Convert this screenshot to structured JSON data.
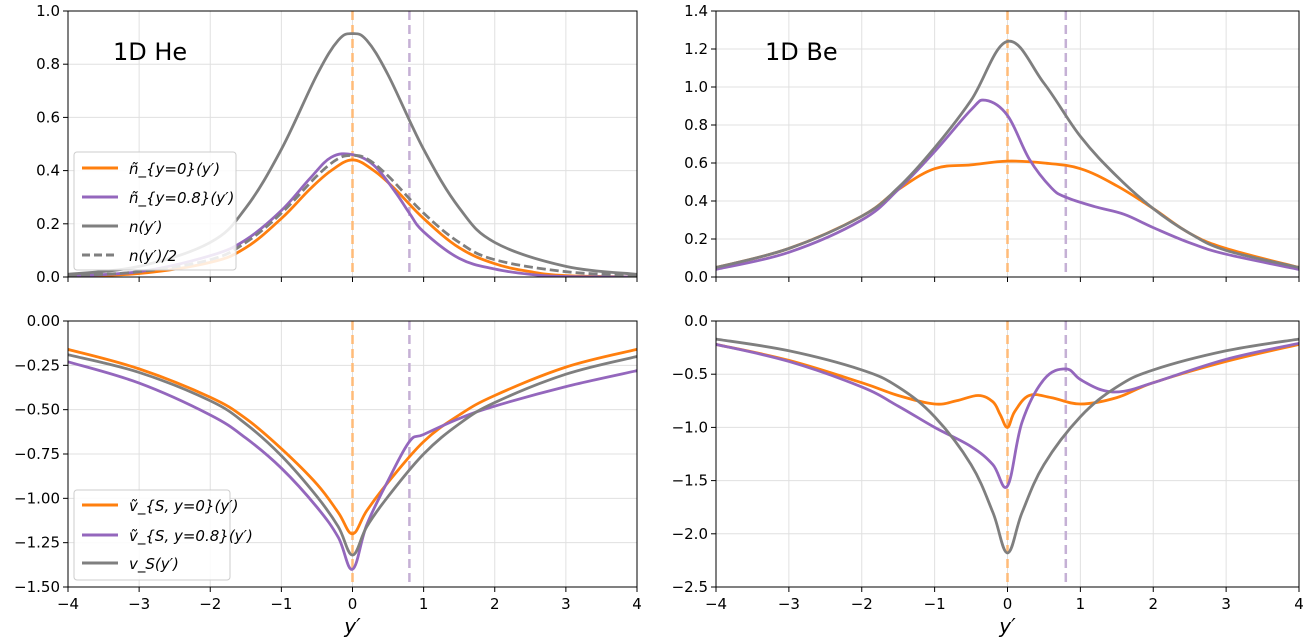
{
  "colors": {
    "orange": "#ff7f0e",
    "purple": "#9467bd",
    "gray": "#7f7f7f",
    "vline_orange": "#ffbb78",
    "vline_purple": "#c5b0d5"
  },
  "chart_data": [
    {
      "id": "he_density",
      "type": "line",
      "annotation": "1D He",
      "xlim": [
        -4,
        4
      ],
      "ylim": [
        0,
        1.0
      ],
      "xticks": [
        -4,
        -3,
        -2,
        -1,
        0,
        1,
        2,
        3,
        4
      ],
      "yticks": [
        0.0,
        0.2,
        0.4,
        0.6,
        0.8,
        1.0
      ],
      "yticklabels": [
        "0.0",
        "0.2",
        "0.4",
        "0.6",
        "0.8",
        "1.0"
      ],
      "show_xticklabels": false,
      "vlines": [
        {
          "x": 0,
          "color": "vline_orange"
        },
        {
          "x": 0.8,
          "color": "vline_purple"
        }
      ],
      "legend": "center-left",
      "series": [
        {
          "name": "ñ_{y=0}(y′)",
          "color": "orange",
          "dash": false,
          "x": [
            -4,
            -3,
            -2,
            -1.5,
            -1,
            -0.6,
            -0.3,
            0,
            0.3,
            0.6,
            1,
            1.5,
            2,
            2.5,
            3,
            4
          ],
          "y": [
            0.003,
            0.013,
            0.055,
            0.11,
            0.22,
            0.33,
            0.4,
            0.44,
            0.4,
            0.33,
            0.22,
            0.11,
            0.05,
            0.02,
            0.005,
            0.0
          ]
        },
        {
          "name": "ñ_{y=0.8}(y′)",
          "color": "purple",
          "dash": false,
          "x": [
            -4,
            -3,
            -2,
            -1.5,
            -1,
            -0.6,
            -0.3,
            0,
            0.3,
            0.6,
            0.8,
            1.0,
            1.5,
            2,
            2.5,
            3,
            4
          ],
          "y": [
            0.004,
            0.02,
            0.08,
            0.14,
            0.25,
            0.37,
            0.45,
            0.46,
            0.42,
            0.32,
            0.24,
            0.17,
            0.07,
            0.03,
            0.01,
            0.002,
            0.0
          ]
        },
        {
          "name": "n(y′)",
          "color": "gray",
          "dash": false,
          "x": [
            -4,
            -3,
            -2,
            -1.5,
            -1,
            -0.5,
            -0.2,
            0,
            0.2,
            0.5,
            1,
            1.5,
            2,
            3,
            4
          ],
          "y": [
            0.01,
            0.04,
            0.13,
            0.26,
            0.48,
            0.76,
            0.89,
            0.915,
            0.89,
            0.76,
            0.48,
            0.26,
            0.13,
            0.04,
            0.01
          ]
        },
        {
          "name": "n(y′)/2",
          "color": "gray",
          "dash": true,
          "x": [
            -4,
            -3,
            -2,
            -1.5,
            -1,
            -0.5,
            -0.2,
            0,
            0.2,
            0.5,
            1,
            1.5,
            2,
            3,
            4
          ],
          "y": [
            0.005,
            0.02,
            0.065,
            0.13,
            0.24,
            0.38,
            0.445,
            0.457,
            0.445,
            0.38,
            0.24,
            0.13,
            0.065,
            0.02,
            0.005
          ]
        }
      ]
    },
    {
      "id": "be_density",
      "type": "line",
      "annotation": "1D Be",
      "xlim": [
        -4,
        4
      ],
      "ylim": [
        0,
        1.4
      ],
      "xticks": [
        -4,
        -3,
        -2,
        -1,
        0,
        1,
        2,
        3,
        4
      ],
      "yticks": [
        0.0,
        0.2,
        0.4,
        0.6,
        0.8,
        1.0,
        1.2,
        1.4
      ],
      "yticklabels": [
        "0.0",
        "0.2",
        "0.4",
        "0.6",
        "0.8",
        "1.0",
        "1.2",
        "1.4"
      ],
      "show_xticklabels": false,
      "vlines": [
        {
          "x": 0,
          "color": "vline_orange"
        },
        {
          "x": 0.8,
          "color": "vline_purple"
        }
      ],
      "legend": "none",
      "series": [
        {
          "color": "orange",
          "dash": false,
          "x": [
            -4,
            -3,
            -2,
            -1.5,
            -1,
            -0.5,
            0,
            0.5,
            1,
            1.5,
            2,
            2.5,
            3,
            4
          ],
          "y": [
            0.05,
            0.15,
            0.32,
            0.46,
            0.57,
            0.59,
            0.61,
            0.6,
            0.57,
            0.48,
            0.36,
            0.23,
            0.15,
            0.05
          ]
        },
        {
          "color": "purple",
          "dash": false,
          "x": [
            -4,
            -3,
            -2,
            -1.5,
            -1,
            -0.5,
            -0.3,
            0,
            0.3,
            0.6,
            0.8,
            1.2,
            1.6,
            2,
            2.5,
            3,
            4
          ],
          "y": [
            0.04,
            0.13,
            0.3,
            0.46,
            0.66,
            0.88,
            0.93,
            0.85,
            0.62,
            0.47,
            0.42,
            0.37,
            0.33,
            0.26,
            0.18,
            0.12,
            0.04
          ]
        },
        {
          "color": "gray",
          "dash": false,
          "x": [
            -4,
            -3,
            -2,
            -1.5,
            -1,
            -0.5,
            0,
            0.5,
            1,
            1.5,
            2,
            2.5,
            3,
            4
          ],
          "y": [
            0.05,
            0.15,
            0.32,
            0.47,
            0.68,
            0.93,
            1.24,
            1.02,
            0.74,
            0.53,
            0.36,
            0.23,
            0.14,
            0.05
          ]
        }
      ]
    },
    {
      "id": "he_potential",
      "type": "line",
      "xlim": [
        -4,
        4
      ],
      "ylim": [
        -1.5,
        0.0
      ],
      "xticks": [
        -4,
        -3,
        -2,
        -1,
        0,
        1,
        2,
        3,
        4
      ],
      "xticklabels": [
        "−4",
        "−3",
        "−2",
        "−1",
        "0",
        "1",
        "2",
        "3",
        "4"
      ],
      "yticks": [
        -1.5,
        -1.25,
        -1.0,
        -0.75,
        -0.5,
        -0.25,
        0.0
      ],
      "yticklabels": [
        "−1.50",
        "−1.25",
        "−1.00",
        "−0.75",
        "−0.50",
        "−0.25",
        "0.00"
      ],
      "show_xticklabels": true,
      "xlabel": "y′",
      "vlines": [
        {
          "x": 0,
          "color": "vline_orange"
        },
        {
          "x": 0.8,
          "color": "vline_purple"
        }
      ],
      "legend": "lower-left",
      "series": [
        {
          "name": "ṽ_{S, y=0}(y′)",
          "color": "orange",
          "dash": false,
          "x": [
            -4,
            -3,
            -2,
            -1.5,
            -1,
            -0.5,
            -0.2,
            0,
            0.2,
            0.5,
            1,
            1.5,
            2,
            3,
            4
          ],
          "y": [
            -0.16,
            -0.27,
            -0.43,
            -0.55,
            -0.72,
            -0.92,
            -1.08,
            -1.2,
            -1.07,
            -0.91,
            -0.68,
            -0.53,
            -0.42,
            -0.26,
            -0.16
          ]
        },
        {
          "name": "ṽ_{S, y=0.8}(y′)",
          "color": "purple",
          "dash": false,
          "x": [
            -4,
            -3,
            -2,
            -1.5,
            -1,
            -0.5,
            -0.2,
            0,
            0.2,
            0.5,
            0.8,
            1,
            1.5,
            2,
            3,
            4
          ],
          "y": [
            -0.23,
            -0.35,
            -0.53,
            -0.66,
            -0.83,
            -1.05,
            -1.22,
            -1.4,
            -1.15,
            -0.9,
            -0.68,
            -0.64,
            -0.55,
            -0.48,
            -0.37,
            -0.28
          ]
        },
        {
          "name": "v_S(y′)",
          "color": "gray",
          "dash": false,
          "x": [
            -4,
            -3,
            -2,
            -1.5,
            -1,
            -0.5,
            -0.2,
            0,
            0.2,
            0.5,
            1,
            1.5,
            2,
            3,
            4
          ],
          "y": [
            -0.19,
            -0.29,
            -0.45,
            -0.58,
            -0.76,
            -0.99,
            -1.16,
            -1.32,
            -1.16,
            -0.99,
            -0.75,
            -0.58,
            -0.46,
            -0.3,
            -0.2
          ]
        }
      ]
    },
    {
      "id": "be_potential",
      "type": "line",
      "xlim": [
        -4,
        4
      ],
      "ylim": [
        -2.5,
        0.0
      ],
      "xticks": [
        -4,
        -3,
        -2,
        -1,
        0,
        1,
        2,
        3,
        4
      ],
      "xticklabels": [
        "−4",
        "−3",
        "−2",
        "−1",
        "0",
        "1",
        "2",
        "3",
        "4"
      ],
      "yticks": [
        -2.5,
        -2.0,
        -1.5,
        -1.0,
        -0.5,
        0.0
      ],
      "yticklabels": [
        "−2.5",
        "−2.0",
        "−1.5",
        "−1.0",
        "−0.5",
        "0.0"
      ],
      "show_xticklabels": true,
      "xlabel": "y′",
      "vlines": [
        {
          "x": 0,
          "color": "vline_orange"
        },
        {
          "x": 0.8,
          "color": "vline_purple"
        }
      ],
      "legend": "none",
      "series": [
        {
          "color": "orange",
          "dash": false,
          "x": [
            -4,
            -3,
            -2,
            -1.5,
            -1,
            -0.7,
            -0.4,
            -0.2,
            -0.1,
            0,
            0.1,
            0.3,
            0.6,
            1,
            1.5,
            2,
            3,
            4
          ],
          "y": [
            -0.22,
            -0.37,
            -0.58,
            -0.7,
            -0.78,
            -0.75,
            -0.7,
            -0.76,
            -0.88,
            -1.0,
            -0.85,
            -0.7,
            -0.72,
            -0.78,
            -0.72,
            -0.58,
            -0.38,
            -0.22
          ]
        },
        {
          "color": "purple",
          "dash": false,
          "x": [
            -4,
            -3,
            -2,
            -1.5,
            -1,
            -0.5,
            -0.2,
            0,
            0.2,
            0.5,
            0.8,
            1.0,
            1.3,
            1.6,
            2,
            3,
            4
          ],
          "y": [
            -0.22,
            -0.38,
            -0.62,
            -0.8,
            -1.0,
            -1.18,
            -1.35,
            -1.55,
            -0.95,
            -0.55,
            -0.45,
            -0.55,
            -0.65,
            -0.66,
            -0.58,
            -0.36,
            -0.21
          ]
        },
        {
          "color": "gray",
          "dash": false,
          "x": [
            -4,
            -3,
            -2,
            -1.5,
            -1,
            -0.5,
            -0.2,
            0,
            0.2,
            0.5,
            1,
            1.5,
            2,
            3,
            4
          ],
          "y": [
            -0.17,
            -0.28,
            -0.46,
            -0.62,
            -0.9,
            -1.35,
            -1.8,
            -2.18,
            -1.8,
            -1.35,
            -0.9,
            -0.62,
            -0.46,
            -0.28,
            -0.17
          ]
        }
      ]
    }
  ],
  "panel_labels": [
    "1D He",
    "1D Be"
  ],
  "legend_he_density": [
    "ñ_{y=0}(y′)",
    "ñ_{y=0.8}(y′)",
    "n(y′)",
    "n(y′)/2"
  ],
  "legend_he_potential": [
    "ṽ_{S, y=0}(y′)",
    "ṽ_{S, y=0.8}(y′)",
    "v_S(y′)"
  ],
  "xlabel": "y′"
}
